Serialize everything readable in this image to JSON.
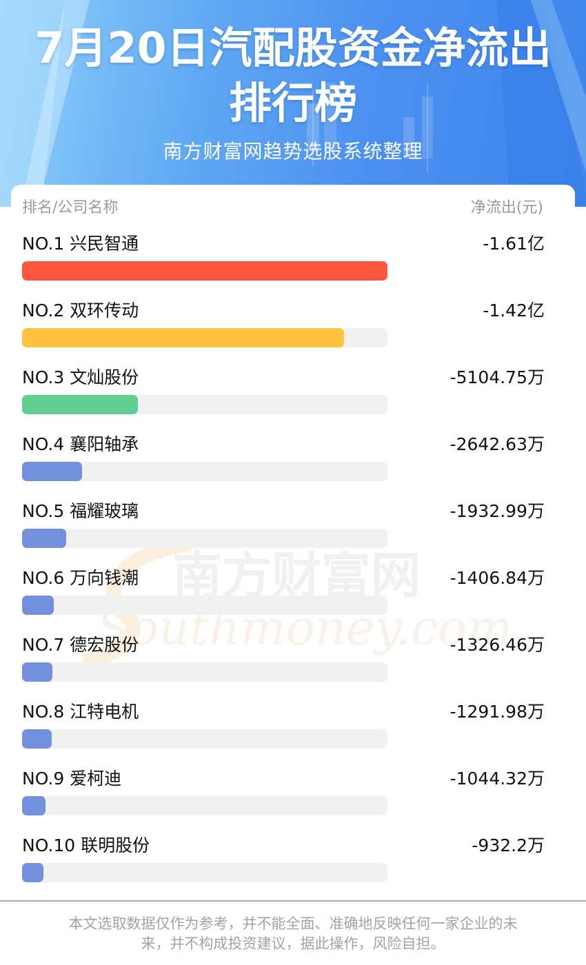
{
  "header": {
    "title_line1": "7月20日汽配股资金净流出",
    "title_line2": "排行榜",
    "subtitle": "南方财富网趋势选股系统整理"
  },
  "table": {
    "col_left": "排名/公司名称",
    "col_right": "净流出(元)"
  },
  "chart_data": {
    "type": "bar",
    "categories": [
      "NO.1 兴民智通",
      "NO.2 双环传动",
      "NO.3 文灿股份",
      "NO.4 襄阳轴承",
      "NO.5 福耀玻璃",
      "NO.6 万向钱潮",
      "NO.7 德宏股份",
      "NO.8 江特电机",
      "NO.9 爱柯迪",
      "NO.10 联明股份"
    ],
    "labels": [
      "-1.61亿",
      "-1.42亿",
      "-5104.75万",
      "-2642.63万",
      "-1932.99万",
      "-1406.84万",
      "-1326.46万",
      "-1291.98万",
      "-1044.32万",
      "-932.2万"
    ],
    "values": [
      16100,
      14200,
      5104.75,
      2642.63,
      1932.99,
      1406.84,
      1326.46,
      1291.98,
      1044.32,
      932.2
    ],
    "bar_colors": [
      "#ff5640",
      "#ffc341",
      "#62cf92",
      "#7390dd",
      "#7390dd",
      "#7390dd",
      "#7390dd",
      "#7390dd",
      "#7390dd",
      "#7390dd"
    ],
    "track_color": "#f1f1f1"
  },
  "watermark": {
    "cn": "南方财富网",
    "en": "Southmoney.com"
  },
  "disclaimer": {
    "line1": "本文选取数据仅作为参考，并不能全面、准确地反映任何一家企业的未",
    "line2": "来，并不构成投资建议，据此操作，风险自担。"
  }
}
